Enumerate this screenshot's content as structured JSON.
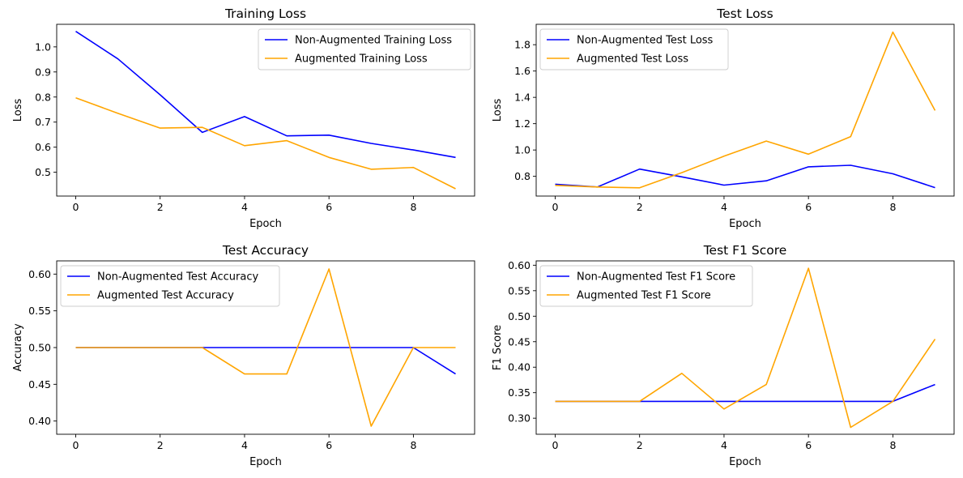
{
  "chart_data": [
    {
      "type": "line",
      "title": "Training Loss",
      "xlabel": "Epoch",
      "ylabel": "Loss",
      "x": [
        0,
        1,
        2,
        3,
        4,
        5,
        6,
        7,
        8,
        9
      ],
      "xlim": [
        -0.45,
        9.45
      ],
      "ylim": [
        0.405,
        1.09
      ],
      "xticks": [
        0,
        2,
        4,
        6,
        8
      ],
      "yticks": [
        0.5,
        0.6,
        0.7,
        0.8,
        0.9,
        1.0
      ],
      "ytick_labels": [
        "0.5",
        "0.6",
        "0.7",
        "0.8",
        "0.9",
        "1.0"
      ],
      "legend": "top-right",
      "series": [
        {
          "name": "Non-Augmented Training Loss",
          "color": "#0000ff",
          "values": [
            1.062,
            0.952,
            0.809,
            0.659,
            0.722,
            0.645,
            0.648,
            0.615,
            0.589,
            0.559
          ]
        },
        {
          "name": "Augmented Training Loss",
          "color": "#ffa500",
          "values": [
            0.797,
            0.735,
            0.676,
            0.679,
            0.606,
            0.626,
            0.559,
            0.512,
            0.519,
            0.434
          ]
        }
      ]
    },
    {
      "type": "line",
      "title": "Test Loss",
      "xlabel": "Epoch",
      "ylabel": "Loss",
      "x": [
        0,
        1,
        2,
        3,
        4,
        5,
        6,
        7,
        8,
        9
      ],
      "xlim": [
        -0.45,
        9.45
      ],
      "ylim": [
        0.65,
        1.955
      ],
      "xticks": [
        0,
        2,
        4,
        6,
        8
      ],
      "yticks": [
        0.8,
        1.0,
        1.2,
        1.4,
        1.6,
        1.8
      ],
      "ytick_labels": [
        "0.8",
        "1.0",
        "1.2",
        "1.4",
        "1.6",
        "1.8"
      ],
      "legend": "top-left",
      "series": [
        {
          "name": "Non-Augmented Test Loss",
          "color": "#0000ff",
          "values": [
            0.74,
            0.719,
            0.855,
            0.796,
            0.733,
            0.766,
            0.872,
            0.884,
            0.819,
            0.714
          ]
        },
        {
          "name": "Augmented Test Loss",
          "color": "#ffa500",
          "values": [
            0.731,
            0.719,
            0.713,
            0.828,
            0.953,
            1.068,
            0.968,
            1.102,
            1.896,
            1.3
          ]
        }
      ]
    },
    {
      "type": "line",
      "title": "Test Accuracy",
      "xlabel": "Epoch",
      "ylabel": "Accuracy",
      "x": [
        0,
        1,
        2,
        3,
        4,
        5,
        6,
        7,
        8,
        9
      ],
      "xlim": [
        -0.45,
        9.45
      ],
      "ylim": [
        0.382,
        0.618
      ],
      "xticks": [
        0,
        2,
        4,
        6,
        8
      ],
      "yticks": [
        0.4,
        0.45,
        0.5,
        0.55,
        0.6
      ],
      "ytick_labels": [
        "0.40",
        "0.45",
        "0.50",
        "0.55",
        "0.60"
      ],
      "legend": "top-left",
      "series": [
        {
          "name": "Non-Augmented Test Accuracy",
          "color": "#0000ff",
          "values": [
            0.5,
            0.5,
            0.5,
            0.5,
            0.5,
            0.5,
            0.5,
            0.5,
            0.5,
            0.464
          ]
        },
        {
          "name": "Augmented Test Accuracy",
          "color": "#ffa500",
          "values": [
            0.5,
            0.5,
            0.5,
            0.5,
            0.464,
            0.464,
            0.607,
            0.393,
            0.5,
            0.5
          ]
        }
      ]
    },
    {
      "type": "line",
      "title": "Test F1 Score",
      "xlabel": "Epoch",
      "ylabel": "F1 Score",
      "x": [
        0,
        1,
        2,
        3,
        4,
        5,
        6,
        7,
        8,
        9
      ],
      "xlim": [
        -0.45,
        9.45
      ],
      "ylim": [
        0.2685,
        0.6085
      ],
      "xticks": [
        0,
        2,
        4,
        6,
        8
      ],
      "yticks": [
        0.3,
        0.35,
        0.4,
        0.45,
        0.5,
        0.55,
        0.6
      ],
      "ytick_labels": [
        "0.30",
        "0.35",
        "0.40",
        "0.45",
        "0.50",
        "0.55",
        "0.60"
      ],
      "legend": "top-left",
      "series": [
        {
          "name": "Non-Augmented Test F1 Score",
          "color": "#0000ff",
          "values": [
            0.333,
            0.333,
            0.333,
            0.333,
            0.333,
            0.333,
            0.333,
            0.333,
            0.333,
            0.366
          ]
        },
        {
          "name": "Augmented Test F1 Score",
          "color": "#ffa500",
          "values": [
            0.333,
            0.333,
            0.333,
            0.388,
            0.318,
            0.366,
            0.594,
            0.282,
            0.333,
            0.455
          ]
        }
      ]
    }
  ]
}
